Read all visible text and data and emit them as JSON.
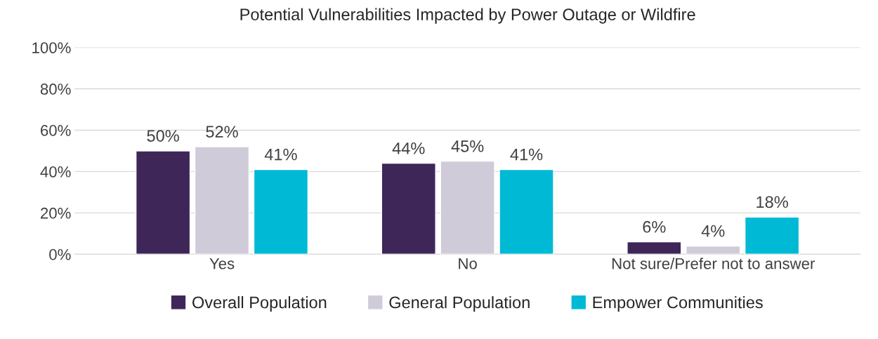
{
  "chart_data": {
    "type": "bar",
    "title": "Potential Vulnerabilities Impacted by Power Outage or Wildfire",
    "categories": [
      "Yes",
      "No",
      "Not sure/Prefer not to answer"
    ],
    "series": [
      {
        "name": "Overall Population",
        "color": "#3e2659",
        "values": [
          50,
          44,
          6
        ],
        "value_labels": [
          "50%",
          "44%",
          "6%"
        ]
      },
      {
        "name": "General Population",
        "color": "#d0cbd9",
        "values": [
          52,
          45,
          4
        ],
        "value_labels": [
          "52%",
          "45%",
          "4%"
        ]
      },
      {
        "name": "Empower Communities",
        "color": "#00b9d5",
        "values": [
          41,
          41,
          18
        ],
        "value_labels": [
          "41%",
          "41%",
          "18%"
        ]
      }
    ],
    "ylim": [
      0,
      100
    ],
    "yticks": [
      {
        "value": 0,
        "label": "0%"
      },
      {
        "value": 20,
        "label": "20%"
      },
      {
        "value": 40,
        "label": "40%"
      },
      {
        "value": 60,
        "label": "60%"
      },
      {
        "value": 80,
        "label": "80%"
      },
      {
        "value": 100,
        "label": "100%"
      }
    ],
    "grid": "y",
    "legend": "bottom"
  }
}
